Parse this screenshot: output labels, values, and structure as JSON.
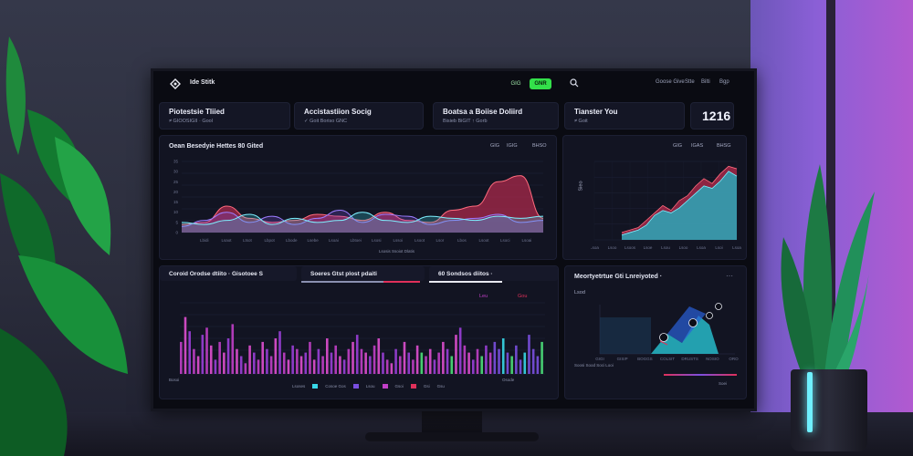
{
  "header": {
    "brand": "Ide Stitk",
    "chip_ghost": "GIG",
    "chip_green": "GNR",
    "nav": [
      "Goose Give",
      "Stte",
      "Bilti",
      "Bgp"
    ]
  },
  "stats": [
    {
      "title": "Piotestsie Tliied",
      "sub": "≠ GIOOSIGII · Gool"
    },
    {
      "title": "Accistastiion Socig",
      "sub": "✓ Goit Boriso GNC"
    },
    {
      "title": "Boatsa a Boiise Doliird",
      "sub": "Bisieb BiGIT ↑ Gorb"
    },
    {
      "title": "Tianster You",
      "sub": "≠ Goit"
    },
    {
      "value": "1216"
    }
  ],
  "panel_main": {
    "title": "Oean Besedyie Hettes 80 Gited",
    "legend": [
      "GIG",
      "IGIG",
      "BHSO"
    ],
    "x_ticks": [
      "Lbidi",
      "Lsaot",
      "Ltsot",
      "Lbpot",
      "Lbode",
      "Lsebe",
      "Lsoai",
      "Lbtoei",
      "Lsosi",
      "Lssoi",
      "Lsoot",
      "Lsor",
      "Lbos",
      "Lsoot",
      "Lsoci",
      "Lsoai"
    ],
    "y_ticks": [
      "35",
      "30",
      "25",
      "20",
      "15",
      "10",
      "5",
      "0"
    ],
    "footer": "Lsosis  Ssoiot Dlatis"
  },
  "panel_right": {
    "legend": [
      "GIG",
      "IGAS",
      "BHSG"
    ],
    "y_label": "Sieo",
    "x_ticks": [
      "Lsoa",
      "Lsoo",
      "Lsoos",
      "Lsoe",
      "Lsou",
      "Lsoo",
      "Lsoa",
      "Lsoi",
      "Lsoa"
    ]
  },
  "panel_bottom": {
    "tabs": [
      "Coroid Orodse dtiito · Gisotoee S",
      "Soeres Gtst plost pdaiti",
      "60 Sondsos diitos ·"
    ],
    "legend": [
      "Leu",
      "Gou"
    ],
    "footer_legend": [
      "Lsoses",
      "Cosoe Gos",
      "Lsou",
      "Gsoi",
      "Gsi",
      "Gsu"
    ],
    "footer_left": "Bosoi",
    "footer_right": "Osode"
  },
  "panel_side": {
    "title": "Meortyetrtue  Gti Lnreiyoted ·",
    "legend_top": "Lsod",
    "x_ticks": [
      "GIGI",
      "GISIP",
      "BOGGS",
      "COLSIT",
      "DRUSTS",
      "NOSIO",
      "OROE"
    ],
    "footer": "Soosi  Sood Soci  Looi",
    "footer_right": "Soei"
  },
  "chart_data": [
    {
      "type": "area",
      "title": "Oean Besedyie Hettes 80 Gited",
      "ylim": [
        0,
        35
      ],
      "series": [
        {
          "values": [
            4,
            5,
            13,
            7,
            5,
            6,
            9,
            8,
            6,
            10,
            6,
            5,
            11,
            13,
            25,
            28,
            7
          ]
        },
        {
          "values": [
            3,
            6,
            10,
            5,
            8,
            4,
            7,
            11,
            5,
            9,
            8,
            4,
            6,
            7,
            9,
            5,
            6
          ]
        },
        {
          "values": [
            5,
            4,
            6,
            9,
            4,
            7,
            5,
            6,
            10,
            6,
            5,
            8,
            7,
            6,
            8,
            7,
            8
          ]
        }
      ]
    },
    {
      "type": "area",
      "series": [
        {
          "values": [
            3,
            4,
            5,
            8,
            11,
            14,
            12,
            16,
            18,
            22,
            25,
            23,
            27,
            30,
            29
          ]
        },
        {
          "values": [
            2,
            3,
            4,
            6,
            10,
            12,
            11,
            13,
            16,
            19,
            22,
            21,
            24,
            28,
            26
          ]
        }
      ]
    },
    {
      "type": "bar",
      "ylim": [
        0,
        40
      ],
      "values": [
        18,
        32,
        24,
        14,
        10,
        22,
        26,
        16,
        8,
        18,
        12,
        20,
        28,
        14,
        10,
        6,
        16,
        12,
        8,
        18,
        14,
        10,
        20,
        24,
        12,
        8,
        16,
        14,
        10,
        12,
        18,
        8,
        14,
        10,
        20,
        12,
        16,
        10,
        8,
        14,
        18,
        22,
        14,
        12,
        10,
        16,
        20,
        12,
        8,
        6,
        14,
        10,
        18,
        12,
        8,
        16,
        12,
        10,
        14,
        8,
        12,
        18,
        14,
        10,
        22,
        26,
        16,
        12,
        8,
        14,
        10,
        16,
        12,
        18,
        14,
        20,
        12,
        10,
        16,
        8,
        12,
        22,
        14,
        10,
        18
      ]
    }
  ]
}
